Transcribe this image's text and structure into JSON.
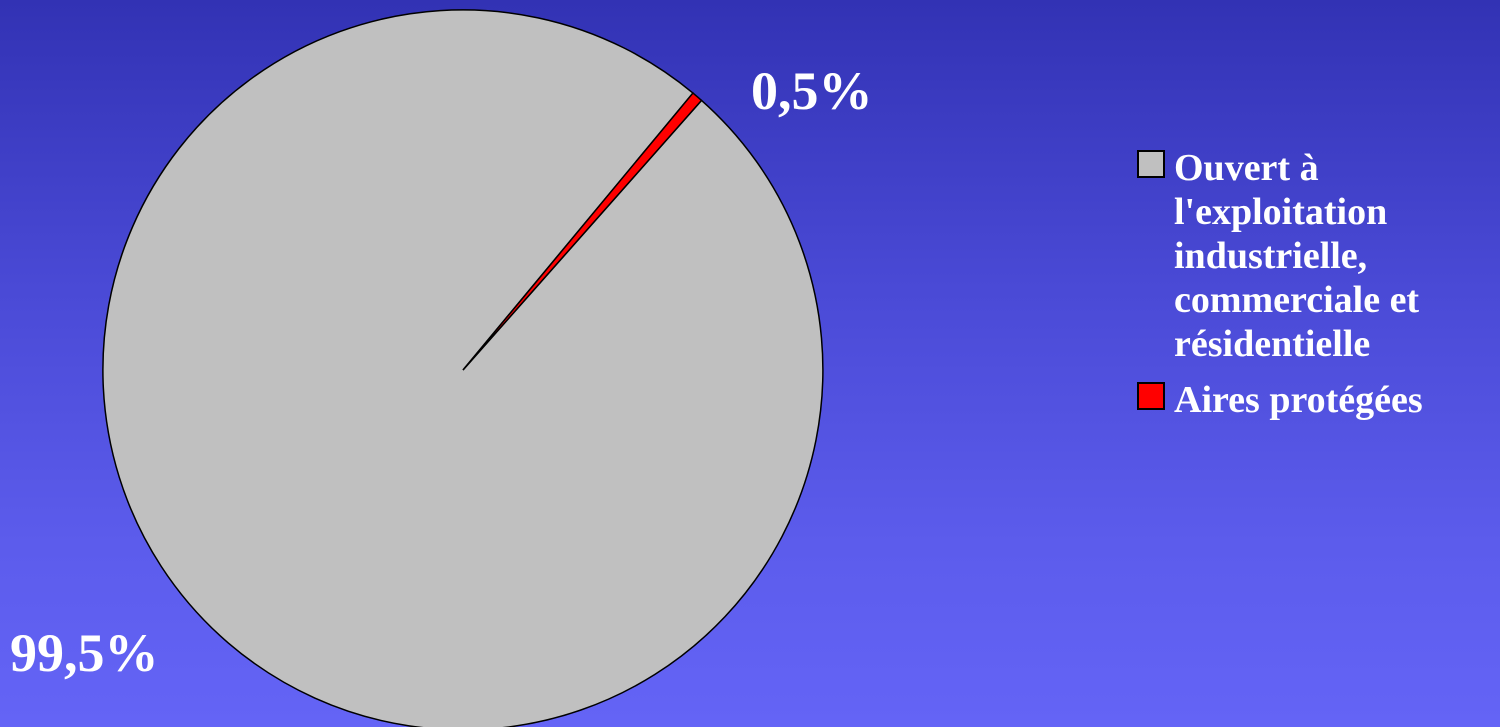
{
  "chart_data": {
    "type": "pie",
    "title": "",
    "slices": [
      {
        "label": "Ouvert à l'exploitation industrielle, commerciale et résidentielle",
        "value": 99.5,
        "display": "99,5%",
        "color": "#c0c0c0"
      },
      {
        "label": "Aires protégées",
        "value": 0.5,
        "display": "0,5%",
        "color": "#ff0000"
      }
    ],
    "legend_position": "right",
    "legend_lines": [
      [
        "Ouvert à",
        "l'exploitation",
        "industrielle,",
        "commerciale et",
        "résidentielle"
      ],
      [
        "Aires protégées"
      ]
    ]
  }
}
